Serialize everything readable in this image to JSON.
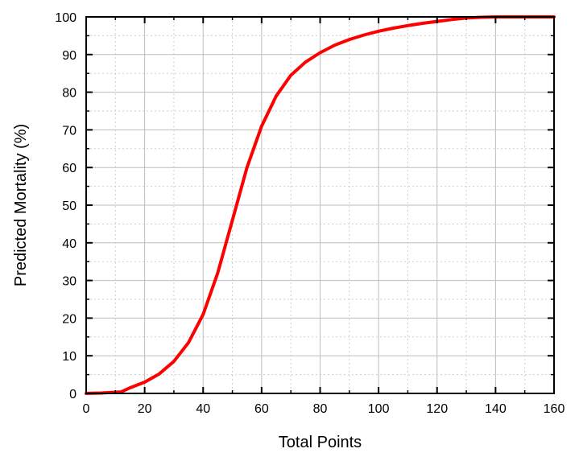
{
  "chart_data": {
    "type": "line",
    "title": "",
    "xlabel": "Total Points",
    "ylabel": "Predicted Mortality (%)",
    "xlim": [
      0,
      160
    ],
    "ylim": [
      0,
      100
    ],
    "x_ticks": [
      "0",
      "20",
      "40",
      "60",
      "80",
      "100",
      "120",
      "140",
      "160"
    ],
    "y_ticks": [
      "0",
      "10",
      "20",
      "30",
      "40",
      "50",
      "60",
      "70",
      "80",
      "90",
      "100"
    ],
    "grid": true,
    "minor_grid": true,
    "legend": "none",
    "series": [
      {
        "color": "#ff0000",
        "x": [
          0,
          5,
          12,
          15,
          20,
          25,
          30,
          35,
          40,
          45,
          50,
          55,
          60,
          65,
          70,
          75,
          80,
          85,
          90,
          95,
          100,
          105,
          110,
          115,
          120,
          125,
          130,
          135,
          140,
          150,
          160
        ],
        "y": [
          0,
          0.1,
          0.4,
          1.5,
          3,
          5.2,
          8.5,
          13.5,
          21,
          32,
          46,
          60,
          71,
          79,
          84.5,
          88,
          90.5,
          92.5,
          94,
          95.2,
          96.2,
          97,
          97.7,
          98.3,
          98.8,
          99.3,
          99.7,
          99.9,
          100,
          100,
          100
        ]
      }
    ]
  }
}
